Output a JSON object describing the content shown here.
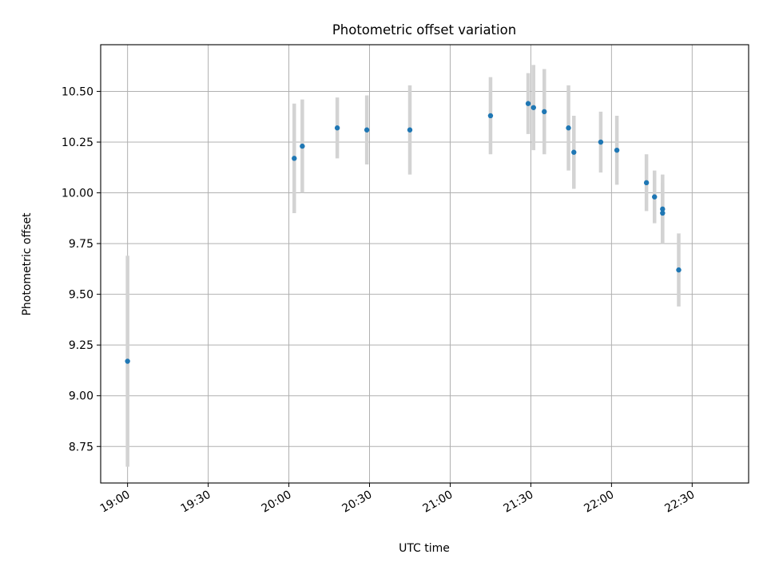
{
  "chart_data": {
    "type": "scatter",
    "title": "Photometric offset variation",
    "xlabel": "UTC time",
    "ylabel": "Photometric offset",
    "x_tick_labels": [
      "19:00",
      "19:30",
      "20:00",
      "20:30",
      "21:00",
      "21:30",
      "22:00",
      "22:30"
    ],
    "y_tick_labels": [
      "8.75",
      "9.00",
      "9.25",
      "9.50",
      "9.75",
      "10.00",
      "10.25",
      "10.50"
    ],
    "xlim": [
      "18:50",
      "22:51"
    ],
    "ylim": [
      8.57,
      10.73
    ],
    "grid": true,
    "colors": {
      "marker": "#1f77b4",
      "errorbar": "#d3d3d3",
      "grid": "#b0b0b0"
    },
    "points": [
      {
        "x": "19:00",
        "y": 9.17,
        "yerr": 0.52
      },
      {
        "x": "20:02",
        "y": 10.17,
        "yerr": 0.27
      },
      {
        "x": "20:05",
        "y": 10.23,
        "yerr": 0.23
      },
      {
        "x": "20:18",
        "y": 10.32,
        "yerr": 0.15
      },
      {
        "x": "20:29",
        "y": 10.31,
        "yerr": 0.17
      },
      {
        "x": "20:45",
        "y": 10.31,
        "yerr": 0.22
      },
      {
        "x": "21:15",
        "y": 10.38,
        "yerr": 0.19
      },
      {
        "x": "21:29",
        "y": 10.44,
        "yerr": 0.15
      },
      {
        "x": "21:31",
        "y": 10.42,
        "yerr": 0.21
      },
      {
        "x": "21:35",
        "y": 10.4,
        "yerr": 0.21
      },
      {
        "x": "21:44",
        "y": 10.32,
        "yerr": 0.21
      },
      {
        "x": "21:46",
        "y": 10.2,
        "yerr": 0.18
      },
      {
        "x": "21:56",
        "y": 10.25,
        "yerr": 0.15
      },
      {
        "x": "22:02",
        "y": 10.21,
        "yerr": 0.17
      },
      {
        "x": "22:13",
        "y": 10.05,
        "yerr": 0.14
      },
      {
        "x": "22:16",
        "y": 9.98,
        "yerr": 0.13
      },
      {
        "x": "22:19",
        "y": 9.92,
        "yerr": 0.17
      },
      {
        "x": "22:19",
        "y": 9.9,
        "yerr": 0.15
      },
      {
        "x": "22:25",
        "y": 9.62,
        "yerr": 0.18
      }
    ]
  }
}
